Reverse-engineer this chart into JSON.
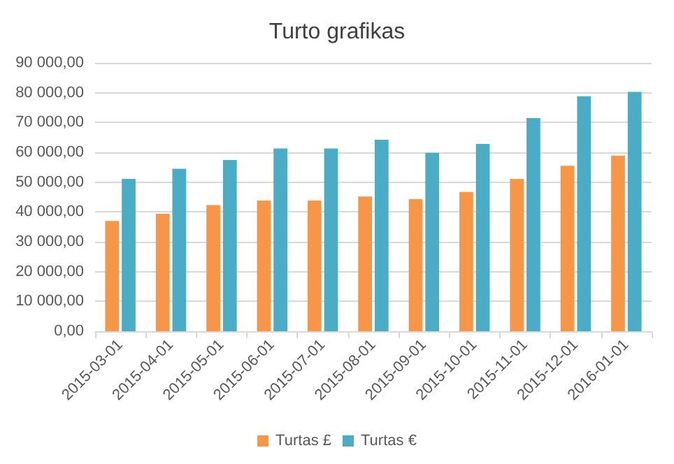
{
  "chart_data": {
    "type": "bar",
    "title": "Turto grafikas",
    "categories": [
      "2015-03-01",
      "2015-04-01",
      "2015-05-01",
      "2015-06-01",
      "2015-07-01",
      "2015-08-01",
      "2015-09-01",
      "2015-10-01",
      "2015-11-01",
      "2015-12-01",
      "2016-01-01"
    ],
    "series": [
      {
        "name": "Turtas £",
        "color": "#f79646",
        "values": [
          37000,
          39400,
          42300,
          43800,
          43800,
          45200,
          44300,
          46700,
          51100,
          55500,
          58900
        ]
      },
      {
        "name": "Turtas €",
        "color": "#4bacc6",
        "values": [
          51100,
          54500,
          57400,
          61300,
          61300,
          64200,
          59800,
          62800,
          71500,
          78800,
          80300
        ]
      }
    ],
    "ylim": [
      0,
      90000
    ],
    "yticks": [
      {
        "value": 0,
        "label": "0,00"
      },
      {
        "value": 10000,
        "label": "10 000,00"
      },
      {
        "value": 20000,
        "label": "20 000,00"
      },
      {
        "value": 30000,
        "label": "30 000,00"
      },
      {
        "value": 40000,
        "label": "40 000,00"
      },
      {
        "value": 50000,
        "label": "50 000,00"
      },
      {
        "value": 60000,
        "label": "60 000,00"
      },
      {
        "value": 70000,
        "label": "70 000,00"
      },
      {
        "value": 80000,
        "label": "80 000,00"
      },
      {
        "value": 90000,
        "label": "90 000,00"
      }
    ],
    "grid": "y",
    "legend": "bottom"
  }
}
